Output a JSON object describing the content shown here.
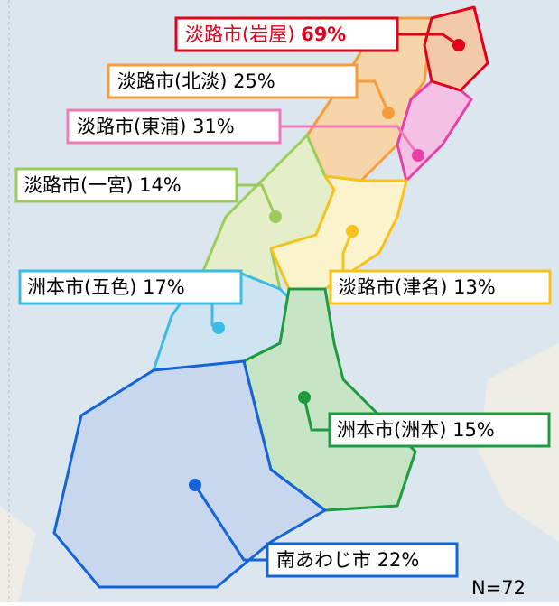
{
  "regions": [
    {
      "name": "淡路市(岩屋)",
      "percent": "69%"
    },
    {
      "name": "淡路市(北淡)",
      "percent": "25%"
    },
    {
      "name": "淡路市(東浦)",
      "percent": "31%"
    },
    {
      "name": "淡路市(一宮)",
      "percent": "14%"
    },
    {
      "name": "洲本市(五色)",
      "percent": "17%"
    },
    {
      "name": "淡路市(津名)",
      "percent": "13%"
    },
    {
      "name": "洲本市(洲本)",
      "percent": "15%"
    },
    {
      "name": "南あわじ市",
      "percent": "22%"
    }
  ],
  "sample": "N=72"
}
